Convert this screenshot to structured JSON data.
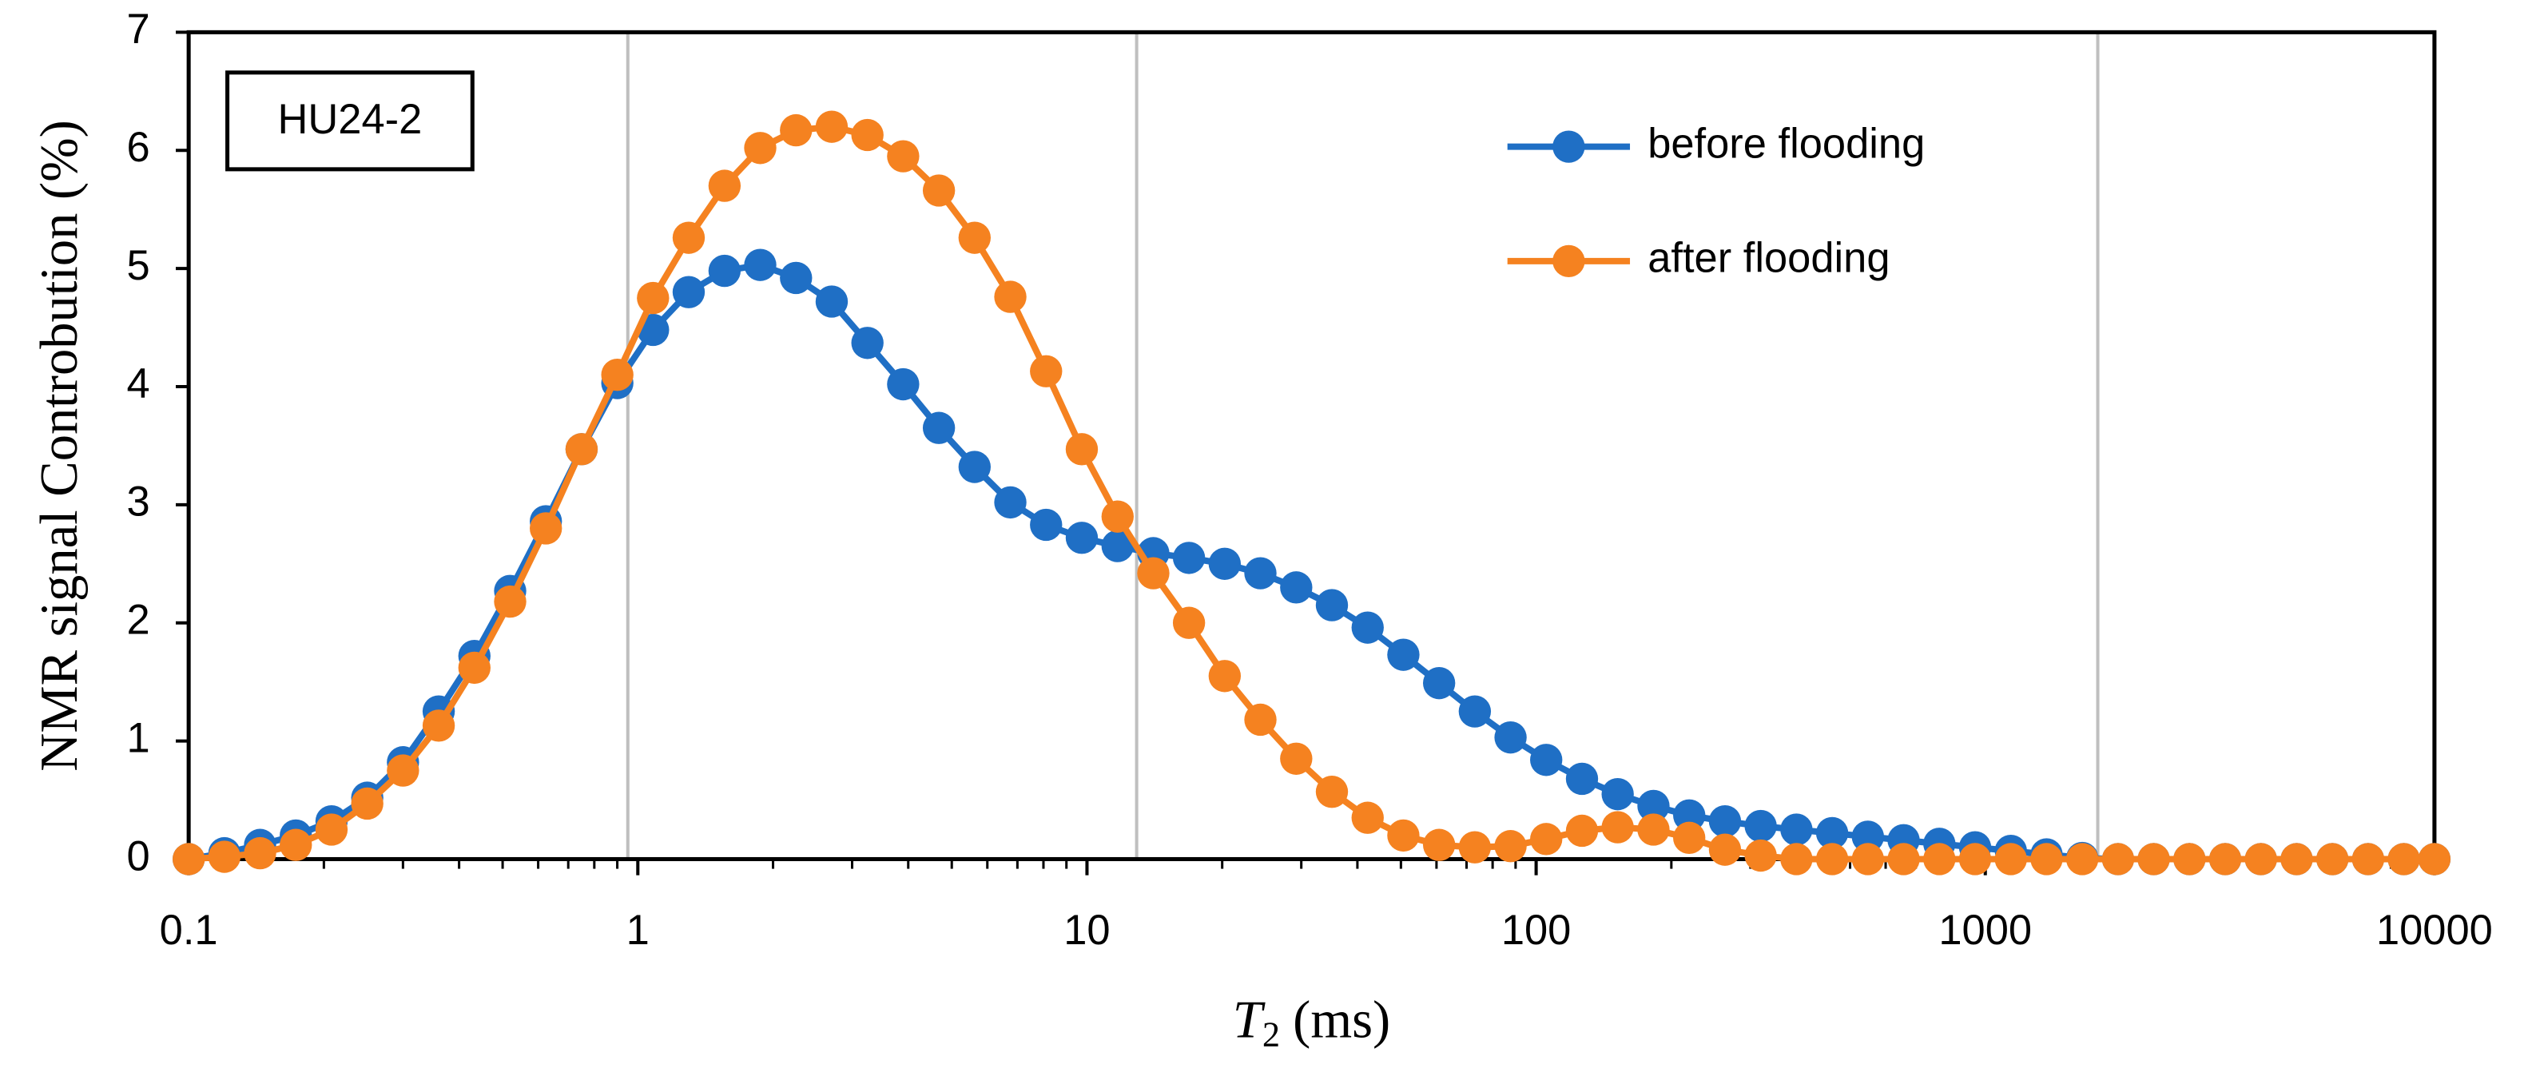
{
  "chart_data": {
    "type": "line",
    "label_box": "HU24-2",
    "x_label": {
      "symbol": "T",
      "subscript": "2",
      "unit": "(ms)"
    },
    "y_label": "NMR signal Controbution (%)",
    "x": [
      0.1,
      0.1201,
      0.1442,
      0.1732,
      0.208,
      0.2498,
      0.3,
      0.3603,
      0.4327,
      0.5197,
      0.6241,
      0.7496,
      0.9003,
      1.081,
      1.298,
      1.56,
      1.873,
      2.25,
      2.702,
      3.245,
      3.897,
      4.681,
      5.621,
      6.751,
      8.108,
      9.738,
      11.7,
      14.05,
      16.87,
      20.26,
      24.33,
      29.23,
      35.1,
      42.16,
      50.63,
      60.81,
      73.03,
      87.71,
      105.3,
      126.5,
      151.9,
      182.5,
      219.2,
      263.3,
      316.2,
      379.8,
      456.1,
      547.8,
      657.9,
      790.2,
      949,
      1140,
      1369,
      1644,
      1975,
      2371,
      2848,
      3421,
      4108,
      4934,
      5926,
      7117,
      8548,
      10000
    ],
    "series": [
      {
        "name": "before flooding",
        "color": "#1f6fc5",
        "values": [
          0,
          0.05,
          0.12,
          0.2,
          0.32,
          0.52,
          0.82,
          1.25,
          1.72,
          2.27,
          2.86,
          3.47,
          4.03,
          4.48,
          4.8,
          4.98,
          5.03,
          4.92,
          4.72,
          4.37,
          4.02,
          3.65,
          3.32,
          3.02,
          2.83,
          2.72,
          2.65,
          2.59,
          2.55,
          2.5,
          2.42,
          2.3,
          2.15,
          1.96,
          1.73,
          1.49,
          1.25,
          1.03,
          0.84,
          0.68,
          0.55,
          0.45,
          0.37,
          0.32,
          0.28,
          0.25,
          0.22,
          0.19,
          0.16,
          0.13,
          0.1,
          0.07,
          0.04,
          0.01,
          0,
          0,
          0,
          0,
          0,
          0,
          0,
          0,
          0,
          0
        ]
      },
      {
        "name": "after flooding",
        "color": "#f58220",
        "values": [
          0,
          0.02,
          0.05,
          0.12,
          0.25,
          0.47,
          0.75,
          1.13,
          1.62,
          2.18,
          2.8,
          3.47,
          4.1,
          4.75,
          5.26,
          5.7,
          6.02,
          6.17,
          6.2,
          6.13,
          5.95,
          5.66,
          5.26,
          4.76,
          4.13,
          3.47,
          2.9,
          2.42,
          2.0,
          1.55,
          1.18,
          0.85,
          0.57,
          0.35,
          0.2,
          0.12,
          0.1,
          0.11,
          0.17,
          0.24,
          0.27,
          0.25,
          0.18,
          0.08,
          0.03,
          0,
          0,
          0,
          0,
          0,
          0,
          0,
          0,
          0,
          0,
          0,
          0,
          0,
          0,
          0,
          0,
          0,
          0,
          0
        ]
      }
    ],
    "xscale": "log",
    "xlim": [
      0.1,
      10000
    ],
    "xticks": [
      0.1,
      1,
      10,
      100,
      1000,
      10000
    ],
    "xminorticks": [
      0.2,
      0.3,
      0.4,
      0.5,
      0.6,
      0.7,
      0.8,
      0.9,
      2,
      3,
      4,
      5,
      6,
      7,
      8,
      9,
      20,
      30,
      40,
      50,
      60,
      70,
      80,
      90,
      200,
      300,
      400,
      500,
      600,
      700,
      800,
      900,
      2000,
      3000,
      4000,
      5000,
      6000,
      7000,
      8000,
      9000
    ],
    "ylim": [
      0,
      7
    ],
    "yticks": [
      0,
      1,
      2,
      3,
      4,
      5,
      6,
      7
    ],
    "reference_lines": [
      0.95,
      12.9,
      1780
    ],
    "legend": "upper right"
  }
}
